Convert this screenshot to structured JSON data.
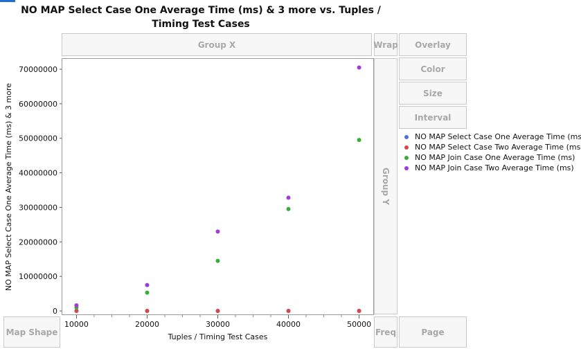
{
  "colors": {
    "series1": "#4a72d8",
    "series2": "#d8474a",
    "series3": "#3aac3a",
    "series4": "#a33ad8"
  },
  "zones": {
    "group_x": "Group X",
    "group_y": "Group Y",
    "wrap": "Wrap",
    "overlay": "Overlay",
    "color": "Color",
    "size": "Size",
    "interval": "Interval",
    "map_shape": "Map Shape",
    "freq": "Freq",
    "page": "Page"
  },
  "chart_data": {
    "type": "scatter",
    "title": "NO MAP Select Case One Average Time (ms) & 3 more vs. Tuples / Timing Test Cases",
    "xlabel": "Tuples / Timing Test Cases",
    "ylabel": "NO MAP Select Case One Average Time (ms) & 3 more",
    "x": [
      10000,
      20000,
      30000,
      40000,
      50000
    ],
    "xlim": [
      8000,
      52000
    ],
    "ylim": [
      -1000000,
      73000000
    ],
    "x_ticks": [
      10000,
      20000,
      30000,
      40000,
      50000
    ],
    "y_ticks": [
      0,
      10000000,
      20000000,
      30000000,
      40000000,
      50000000,
      60000000,
      70000000
    ],
    "grid": false,
    "legend_position": "right",
    "series": [
      {
        "name": "NO MAP Select Case One Average Time (ms)",
        "values": [
          1000,
          2000,
          3000,
          4000,
          5000
        ]
      },
      {
        "name": "NO MAP Select Case Two Average Time (ms)",
        "values": [
          1000,
          2000,
          3000,
          4000,
          5000
        ]
      },
      {
        "name": "NO MAP Join Case One Average Time (ms)",
        "values": [
          1000000,
          5300000,
          14500000,
          29500000,
          49500000
        ]
      },
      {
        "name": "NO MAP Join Case Two Average Time (ms)",
        "values": [
          1600000,
          7500000,
          23000000,
          32800000,
          70500000
        ]
      }
    ]
  }
}
